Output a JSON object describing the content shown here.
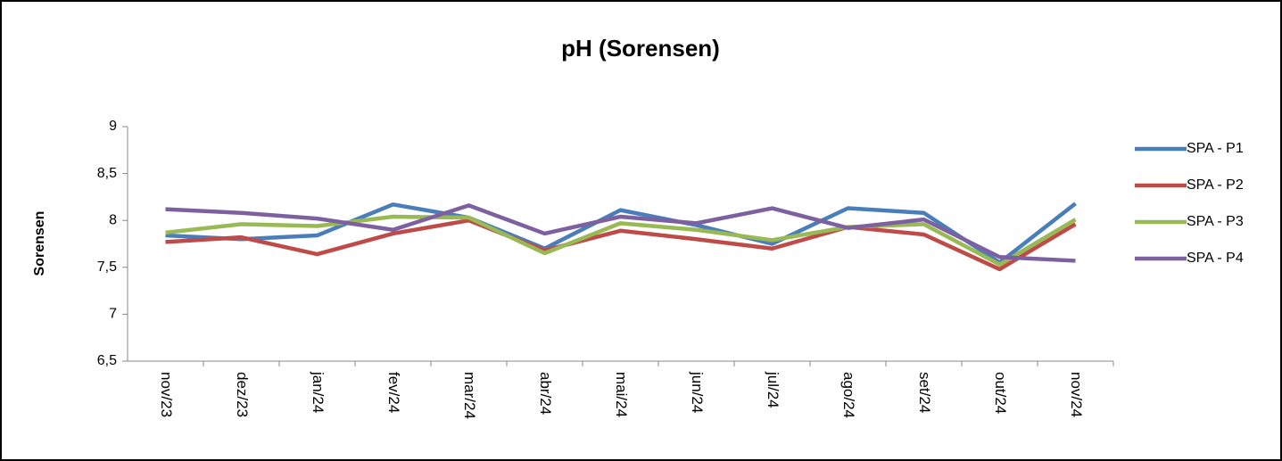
{
  "chart_data": {
    "type": "line",
    "title": "pH (Sorensen)",
    "y_label": "Sorensen",
    "categories": [
      "nov/23",
      "dez/23",
      "jan/24",
      "fev/24",
      "mar/24",
      "abr/24",
      "mai/24",
      "jun/24",
      "jul/24",
      "ago/24",
      "set/24",
      "out/24",
      "nov/24"
    ],
    "series": [
      {
        "name": "SPA - P1",
        "color": "#4a7ebb",
        "values": [
          7.84,
          7.8,
          7.84,
          8.17,
          8.03,
          7.7,
          8.11,
          7.95,
          7.75,
          8.13,
          8.08,
          7.55,
          8.18
        ]
      },
      {
        "name": "SPA - P2",
        "color": "#be4b48",
        "values": [
          7.77,
          7.82,
          7.64,
          7.86,
          8.0,
          7.68,
          7.89,
          7.8,
          7.7,
          7.93,
          7.85,
          7.48,
          7.96
        ]
      },
      {
        "name": "SPA - P3",
        "color": "#98b954",
        "values": [
          7.87,
          7.96,
          7.94,
          8.04,
          8.03,
          7.65,
          7.97,
          7.9,
          7.79,
          7.93,
          7.96,
          7.53,
          8.01
        ]
      },
      {
        "name": "SPA - P4",
        "color": "#7d60a0",
        "values": [
          8.12,
          8.08,
          8.02,
          7.9,
          8.16,
          7.86,
          8.04,
          7.97,
          8.13,
          7.92,
          8.01,
          7.61,
          7.57
        ]
      }
    ],
    "ylim": [
      6.5,
      9
    ],
    "yticks": [
      {
        "value": 6.5,
        "label": "6,5"
      },
      7,
      {
        "value": 7.5,
        "label": "7,5"
      },
      8,
      {
        "value": 8.5,
        "label": "8,5"
      },
      9
    ],
    "grid": false,
    "legend": "right"
  }
}
